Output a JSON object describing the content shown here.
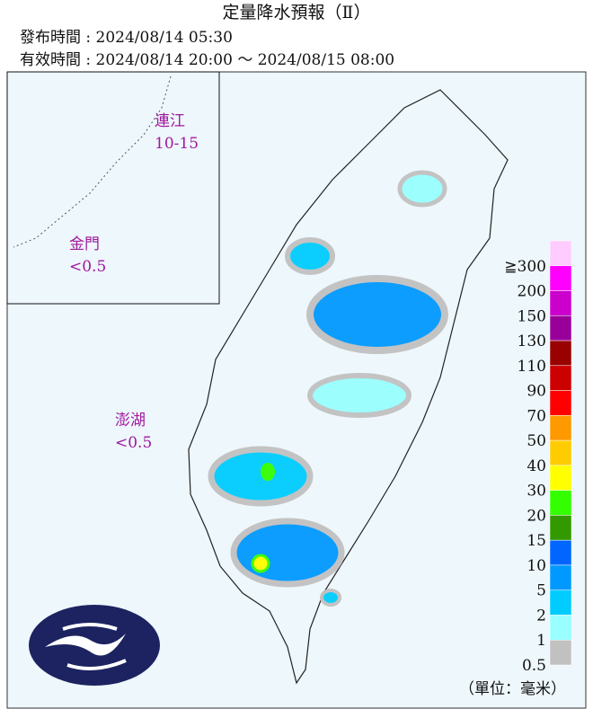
{
  "header": {
    "title": "定量降水預報（Ⅱ）",
    "issued": "發布時間 : 2024/08/14 05:30",
    "valid": "有效時間 : 2024/08/14 20:00 ～ 2024/08/15 08:00"
  },
  "islands": [
    {
      "name": "連江",
      "amount": "10-15"
    },
    {
      "name": "金門",
      "amount": "<0.5"
    },
    {
      "name": "澎湖",
      "amount": "<0.5"
    }
  ],
  "legend": {
    "labels": [
      "≧300",
      200,
      150,
      130,
      110,
      90,
      70,
      50,
      40,
      30,
      20,
      15,
      10,
      5,
      2,
      1,
      0.5
    ],
    "colors": [
      "#ffccff",
      "#ff00ff",
      "#cc00cc",
      "#990099",
      "#990000",
      "#cc0000",
      "#ff0000",
      "#ff9900",
      "#ffcc00",
      "#ffff00",
      "#33ff00",
      "#339900",
      "#0066ff",
      "#0099ff",
      "#00ccff",
      "#99ffff",
      "#c1c1c1"
    ],
    "unit": "（單位：毫米）"
  }
}
